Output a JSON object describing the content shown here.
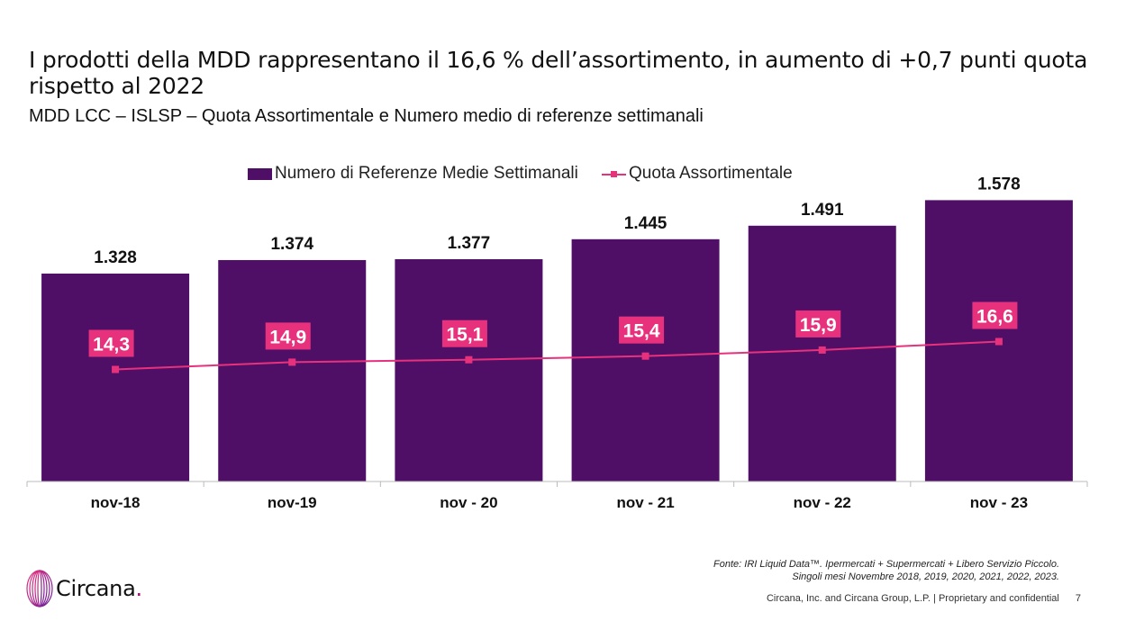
{
  "header": {
    "title": "I prodotti della MDD rappresentano il 16,6 % dell’assortimento, in aumento di +0,7 punti quota rispetto al 2022",
    "subtitle": "MDD LCC – ISLSP – Quota Assortimentale e Numero medio di referenze settimanali"
  },
  "colors": {
    "bar": "#4f0f66",
    "line": "#e8317d",
    "label_bg": "#e8317d",
    "axis": "#bbbbbb"
  },
  "chart_data": {
    "type": "bar",
    "categories": [
      "nov-18",
      "nov-19",
      "nov - 20",
      "nov - 21",
      "nov - 22",
      "nov - 23"
    ],
    "series": [
      {
        "name": "Numero di Referenze Medie Settimanali",
        "type": "bar",
        "values": [
          1328,
          1374,
          1377,
          1445,
          1491,
          1578
        ],
        "labels": [
          "1.328",
          "1.374",
          "1.377",
          "1.445",
          "1.491",
          "1.578"
        ]
      },
      {
        "name": "Quota Assortimentale",
        "type": "line",
        "values": [
          14.3,
          14.9,
          15.1,
          15.4,
          15.9,
          16.6
        ],
        "labels": [
          "14,3",
          "14,9",
          "15,1",
          "15,4",
          "15,9",
          "16,6"
        ]
      }
    ],
    "legend_position": "top-center",
    "grid": false
  },
  "footer": {
    "source_line1": "Fonte: IRI Liquid Data™. Ipermercati + Supermercati + Libero Servizio Piccolo.",
    "source_line2": "Singoli mesi Novembre 2018, 2019, 2020, 2021, 2022, 2023.",
    "company": "Circana, Inc. and Circana Group, L.P. |  Proprietary and confidential",
    "page_number": "7",
    "logo_text": "Circana",
    "logo_dot": "."
  }
}
